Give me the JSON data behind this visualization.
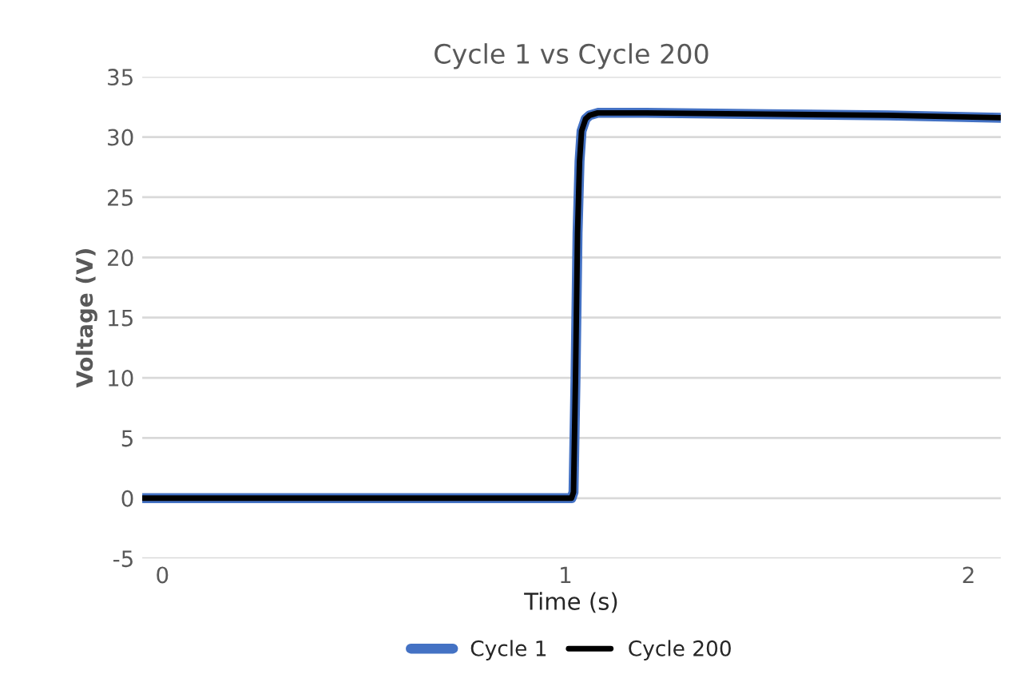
{
  "chart_data": {
    "type": "line",
    "title": "Cycle 1 vs Cycle 200",
    "xlabel": "Time (s)",
    "ylabel": "Voltage (V)",
    "xlim": [
      -0.05,
      2.08
    ],
    "xticks": [
      0,
      1,
      2
    ],
    "ylim": [
      -5,
      35
    ],
    "yticks": [
      -5,
      0,
      5,
      10,
      15,
      20,
      25,
      30,
      35
    ],
    "grid": "y",
    "legend": "bottom",
    "series": [
      {
        "name": "Cycle 1",
        "color": "#4472c4",
        "x": [
          -0.05,
          0.5,
          1.015,
          1.02,
          1.025,
          1.03,
          1.035,
          1.04,
          1.05,
          1.06,
          1.08,
          1.2,
          1.5,
          1.8,
          2.08
        ],
        "values": [
          0,
          0,
          0,
          0.5,
          10,
          22,
          28,
          30.5,
          31.5,
          31.8,
          32,
          32,
          31.9,
          31.8,
          31.6
        ]
      },
      {
        "name": "Cycle 200",
        "color": "#000000",
        "x": [
          -0.05,
          0.5,
          1.015,
          1.02,
          1.025,
          1.03,
          1.035,
          1.04,
          1.05,
          1.06,
          1.08,
          1.2,
          1.5,
          1.8,
          2.08
        ],
        "values": [
          0,
          0,
          0,
          0.5,
          10,
          22,
          28,
          30.5,
          31.5,
          31.8,
          32,
          32,
          31.9,
          31.8,
          31.6
        ]
      }
    ]
  }
}
